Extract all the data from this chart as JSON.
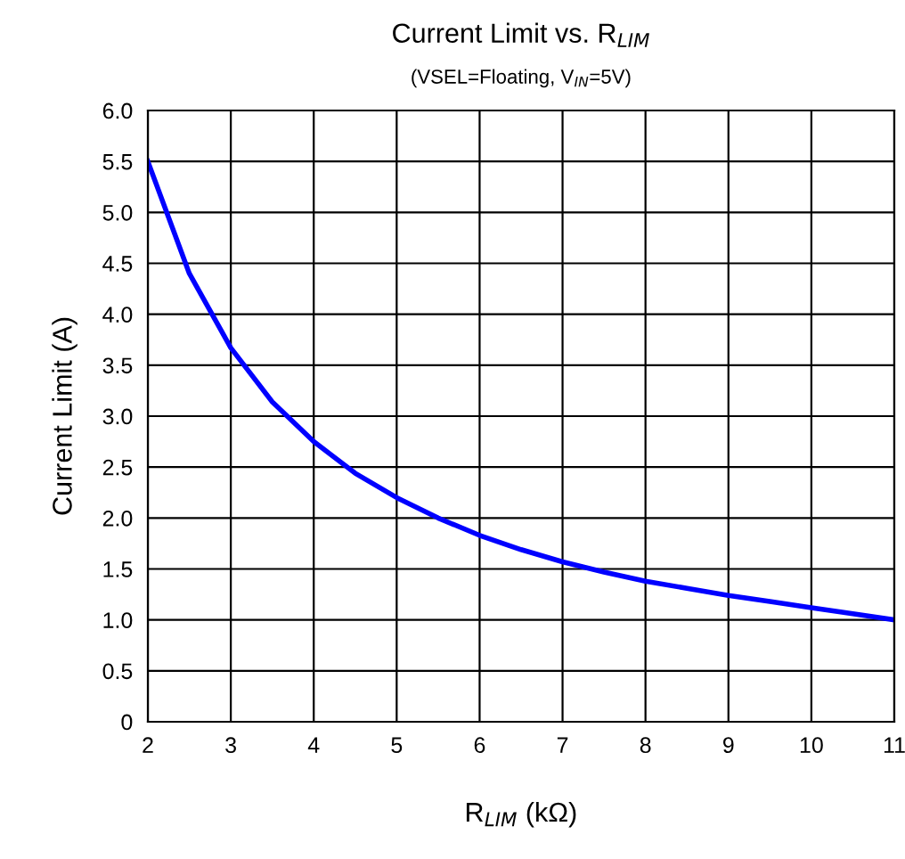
{
  "chart_data": {
    "type": "line",
    "title": "Current Limit vs. R$_{LIM}$",
    "subtitle": "(VSEL=Floating, V$_{IN}$=5V)",
    "xlabel": "R$_{LIM}$ (kΩ)",
    "ylabel": "Current Limit (A)",
    "x": [
      2,
      2.5,
      3,
      3.5,
      4,
      4.5,
      5,
      5.5,
      6,
      6.5,
      7,
      7.5,
      8,
      8.5,
      9,
      9.5,
      10,
      10.5,
      11
    ],
    "series": [
      {
        "color": "#0000ff",
        "values": [
          5.5,
          4.4,
          3.67,
          3.14,
          2.75,
          2.44,
          2.2,
          2.0,
          1.83,
          1.69,
          1.57,
          1.47,
          1.38,
          1.31,
          1.24,
          1.18,
          1.12,
          1.06,
          1.0
        ]
      }
    ],
    "xlim": [
      2,
      11
    ],
    "xticks": [
      2,
      3,
      4,
      5,
      6,
      7,
      8,
      9,
      10,
      11
    ],
    "ylim": [
      0,
      6
    ],
    "yticks": [
      0,
      {
        "value": 0.5,
        "label": "0.5"
      },
      {
        "value": 1,
        "label": "1.0"
      },
      {
        "value": 1.5,
        "label": "1.5"
      },
      {
        "value": 2,
        "label": "2.0"
      },
      {
        "value": 2.5,
        "label": "2.5"
      },
      {
        "value": 3,
        "label": "3.0"
      },
      {
        "value": 3.5,
        "label": "3.5"
      },
      {
        "value": 4,
        "label": "4.0"
      },
      {
        "value": 4.5,
        "label": "4.5"
      },
      {
        "value": 5,
        "label": "5.0"
      },
      {
        "value": 5.5,
        "label": "5.5"
      },
      {
        "value": 6,
        "label": "6.0"
      }
    ],
    "grid": true,
    "line_style": "solid",
    "marker": "none"
  }
}
